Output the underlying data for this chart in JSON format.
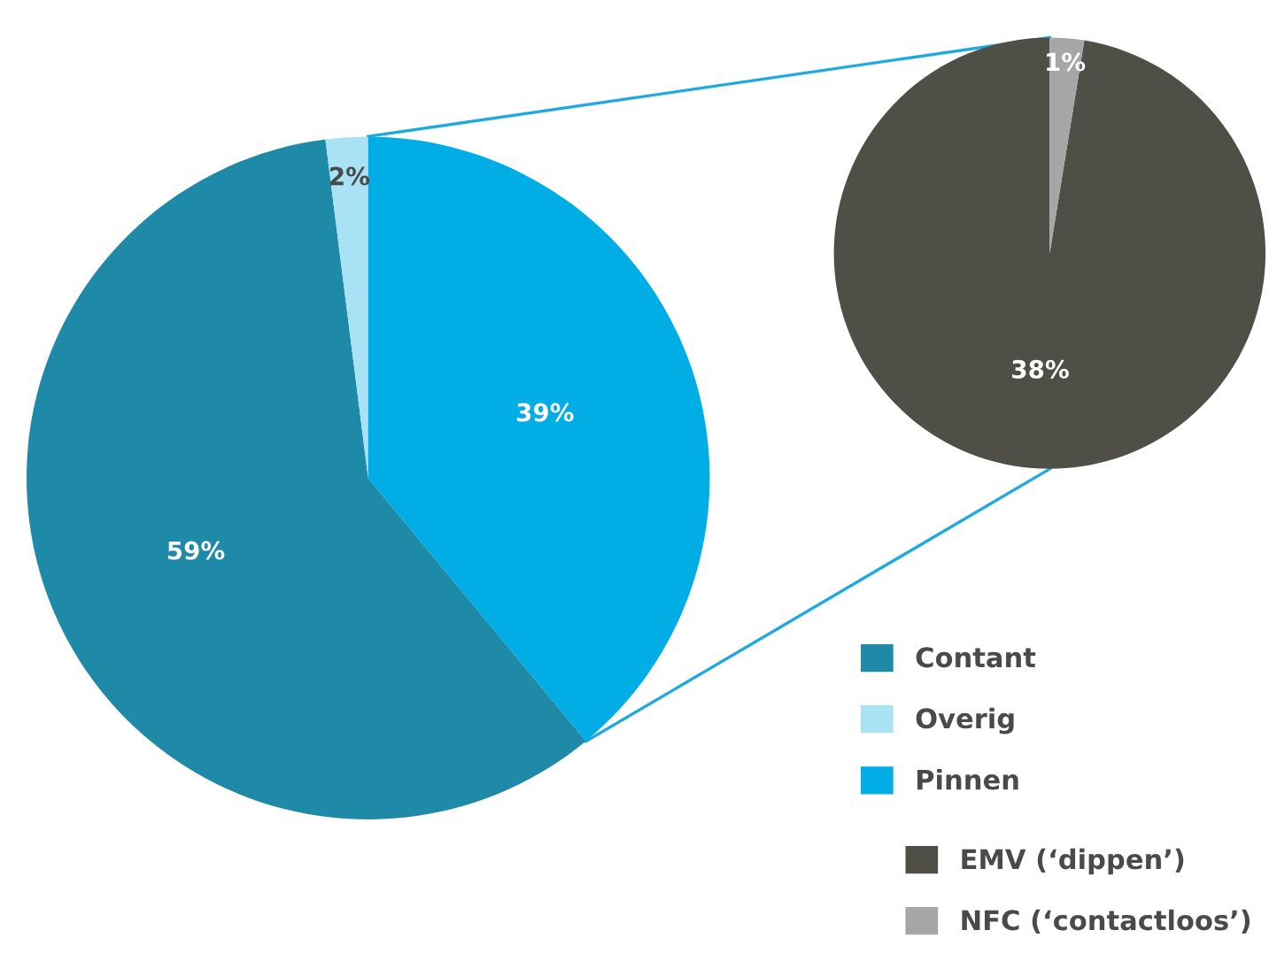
{
  "chart_data": [
    {
      "type": "pie",
      "categories": [
        "Contant",
        "Overig",
        "Pinnen"
      ],
      "values": [
        59,
        2,
        39
      ],
      "colors": [
        "#1f8aa8",
        "#a8e2f4",
        "#00ade5"
      ],
      "value_labels": [
        "59%",
        "2%",
        "39%"
      ],
      "legend": "bottom right"
    },
    {
      "type": "pie",
      "categories": [
        "EMV (‘dippen’)",
        "NFC (‘contactloos’)"
      ],
      "values": [
        38,
        1
      ],
      "colors": [
        "#4f4f47",
        "#a6a6a6"
      ],
      "value_labels": [
        "38%",
        "1%"
      ],
      "legend": "bottom right"
    }
  ]
}
